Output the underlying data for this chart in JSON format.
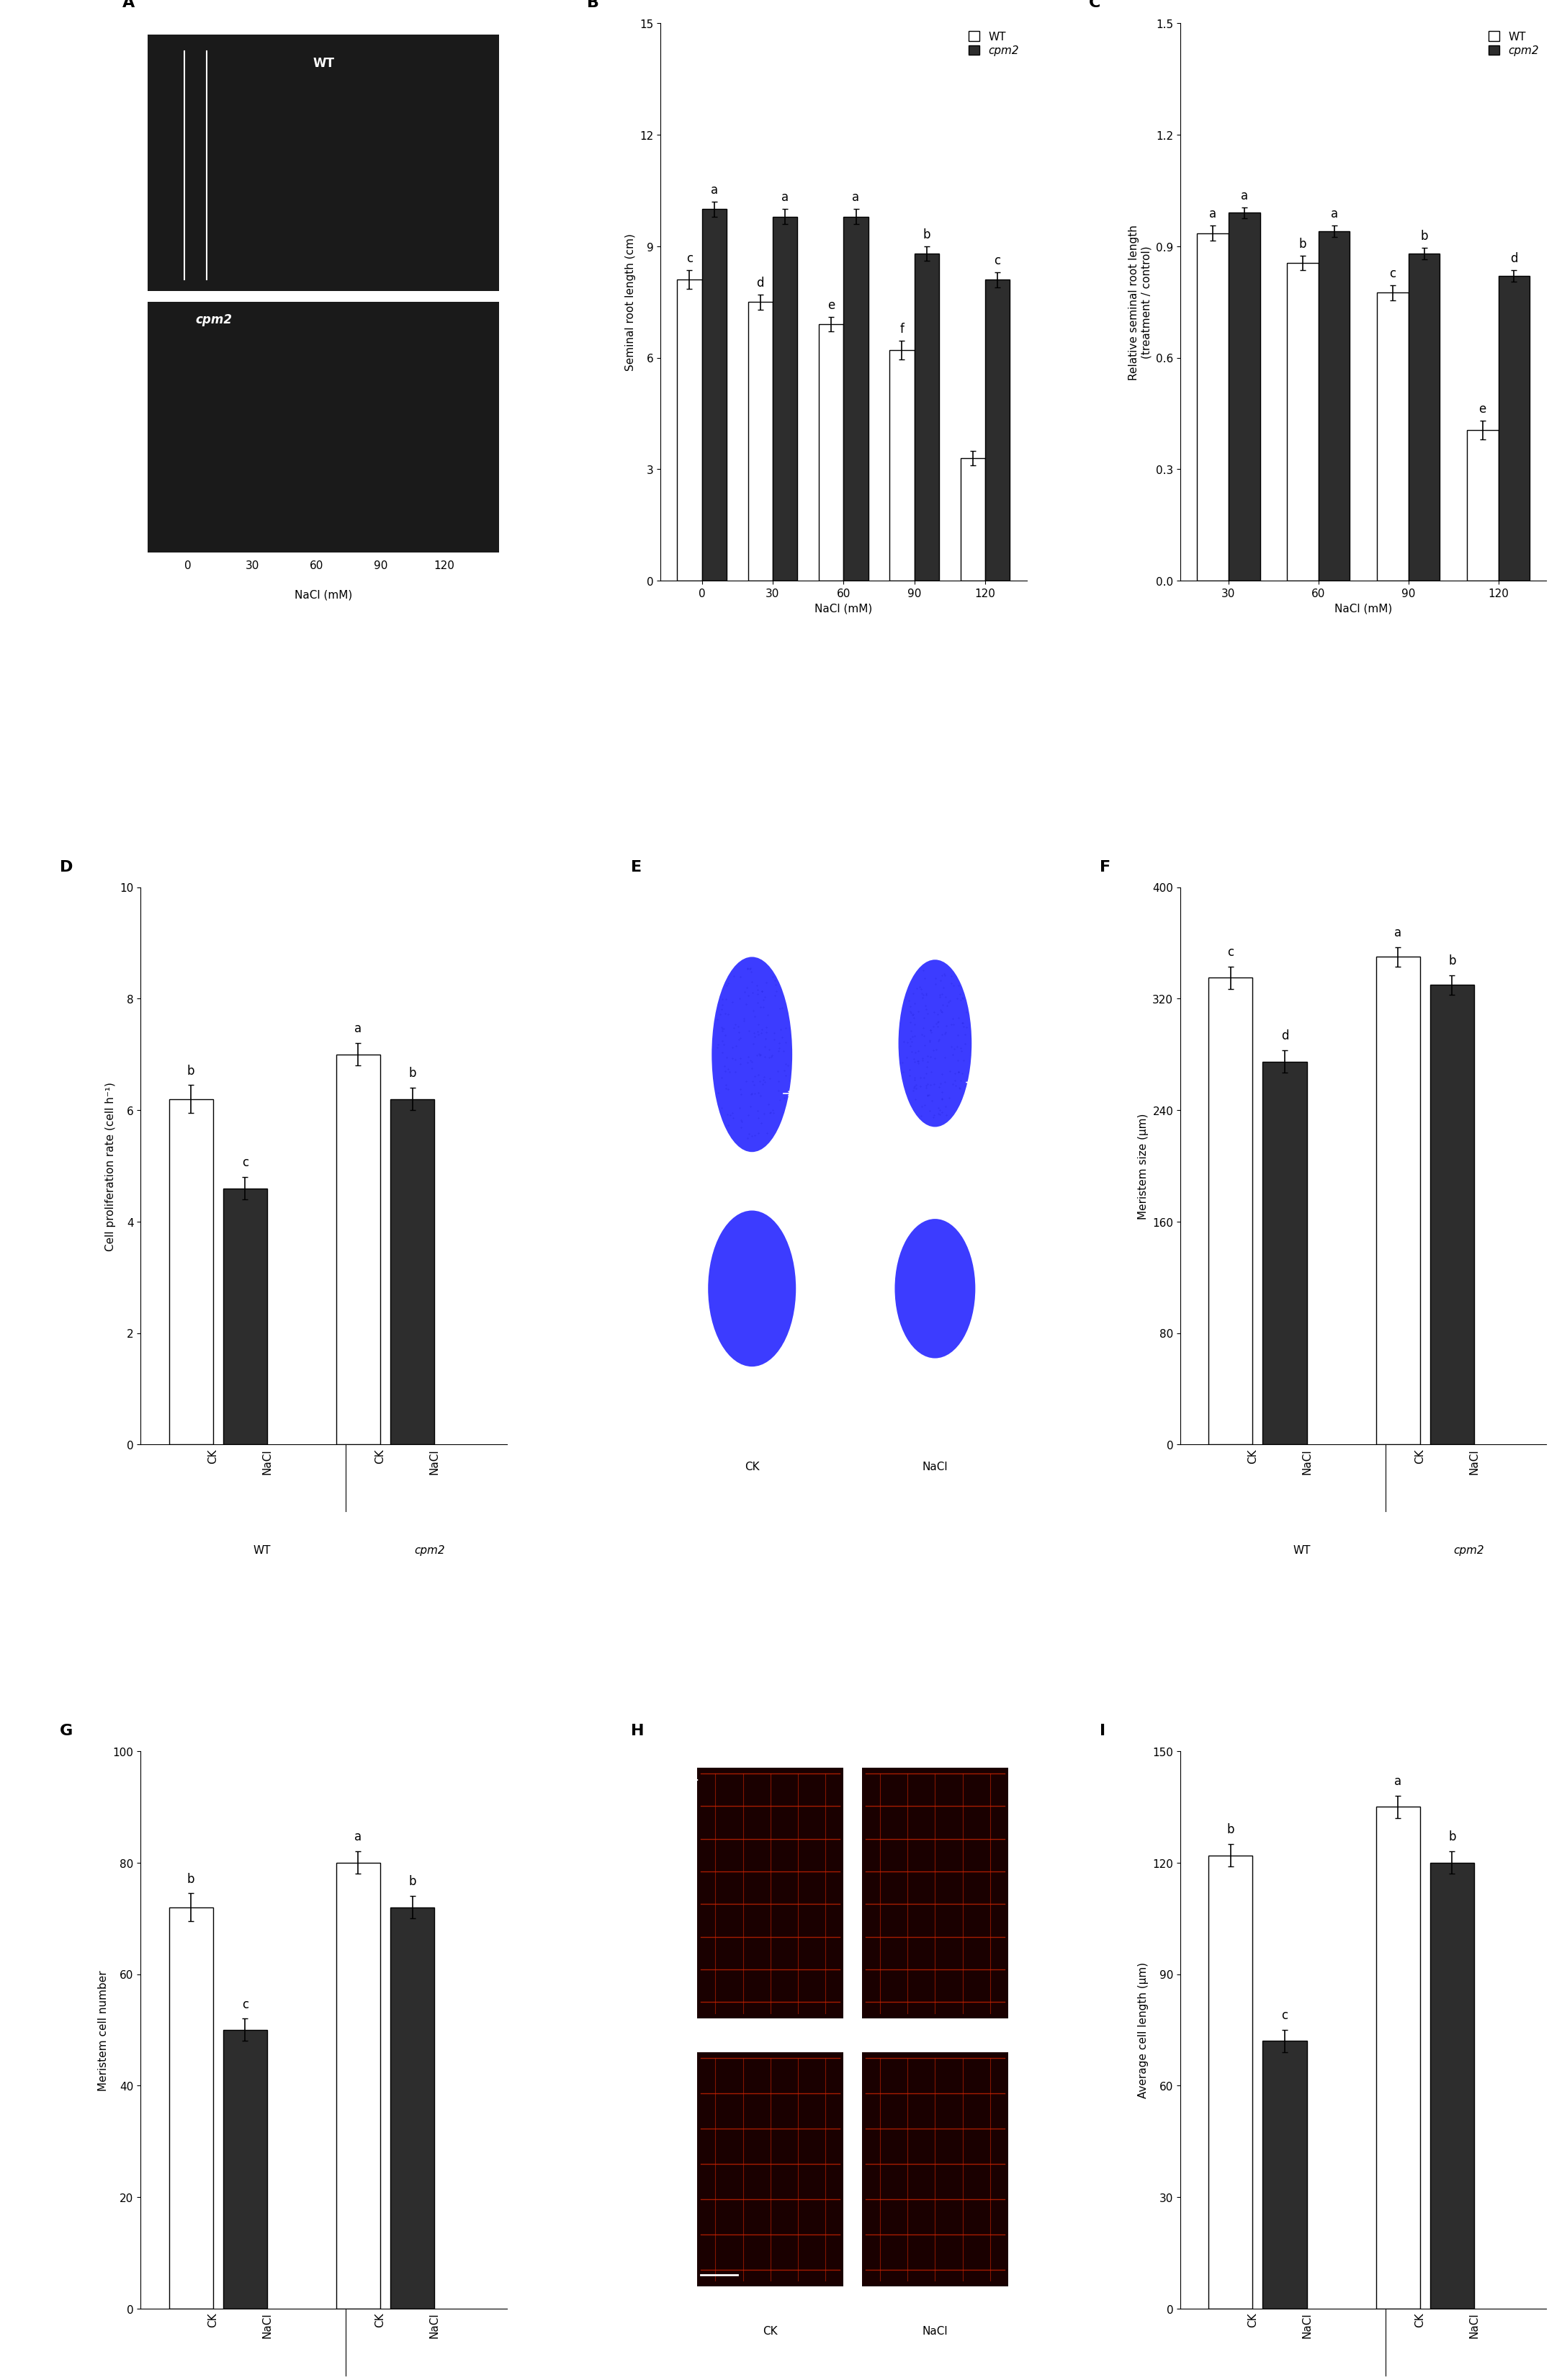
{
  "panel_labels": [
    "A",
    "B",
    "C",
    "D",
    "E",
    "F",
    "G",
    "H",
    "I"
  ],
  "B": {
    "ylabel": "Seminal root length (cm)",
    "xlabel": "NaCl (mM)",
    "xticks": [
      0,
      30,
      60,
      90,
      120
    ],
    "ylim": [
      0,
      15
    ],
    "yticks": [
      0,
      3,
      6,
      9,
      12,
      15
    ],
    "wt_values": [
      8.1,
      7.5,
      6.9,
      6.2,
      3.3
    ],
    "cpm2_values": [
      10.0,
      9.8,
      9.8,
      8.8,
      8.1
    ],
    "wt_err": [
      0.25,
      0.2,
      0.2,
      0.25,
      0.2
    ],
    "cpm2_err": [
      0.2,
      0.2,
      0.2,
      0.2,
      0.2
    ],
    "wt_letters": [
      "c",
      "d",
      "e",
      "f",
      ""
    ],
    "cpm2_letters": [
      "a",
      "a",
      "a",
      "b",
      "c"
    ]
  },
  "C": {
    "ylabel": "Relative seminal root length\n(treatment / control)",
    "xlabel": "NaCl (mM)",
    "xticks": [
      30,
      60,
      90,
      120
    ],
    "ylim": [
      0.0,
      1.5
    ],
    "yticks": [
      0.0,
      0.3,
      0.6,
      0.9,
      1.2,
      1.5
    ],
    "wt_values": [
      0.935,
      0.855,
      0.775,
      0.405
    ],
    "cpm2_values": [
      0.99,
      0.94,
      0.88,
      0.82
    ],
    "wt_err": [
      0.02,
      0.02,
      0.02,
      0.025
    ],
    "cpm2_err": [
      0.015,
      0.015,
      0.015,
      0.015
    ],
    "wt_letters": [
      "a",
      "b",
      "c",
      "e"
    ],
    "cpm2_letters": [
      "a",
      "a",
      "b",
      "d"
    ]
  },
  "D": {
    "ylabel": "Cell proliferation rate (cell h⁻¹)",
    "groups": [
      "WT",
      "cpm2"
    ],
    "conditions": [
      "CK",
      "NaCl"
    ],
    "values": [
      [
        6.2,
        4.6
      ],
      [
        7.0,
        6.2
      ]
    ],
    "errors": [
      [
        0.25,
        0.2
      ],
      [
        0.2,
        0.2
      ]
    ],
    "letters": [
      [
        "b",
        "c"
      ],
      [
        "a",
        "b"
      ]
    ],
    "ylim": [
      0,
      10
    ],
    "yticks": [
      0,
      2,
      4,
      6,
      8,
      10
    ]
  },
  "F": {
    "ylabel": "Meristem size (μm)",
    "groups": [
      "WT",
      "cpm2"
    ],
    "conditions": [
      "CK",
      "NaCl"
    ],
    "values": [
      [
        335,
        275
      ],
      [
        350,
        330
      ]
    ],
    "errors": [
      [
        8,
        8
      ],
      [
        7,
        7
      ]
    ],
    "letters": [
      [
        "c",
        "d"
      ],
      [
        "a",
        "b"
      ]
    ],
    "ylim": [
      0,
      400
    ],
    "yticks": [
      0,
      80,
      160,
      240,
      320,
      400
    ]
  },
  "G": {
    "ylabel": "Meristem cell number",
    "groups": [
      "WT",
      "cpm2"
    ],
    "conditions": [
      "CK",
      "NaCl"
    ],
    "values": [
      [
        72,
        50
      ],
      [
        80,
        72
      ]
    ],
    "errors": [
      [
        2.5,
        2.0
      ],
      [
        2.0,
        2.0
      ]
    ],
    "letters": [
      [
        "b",
        "c"
      ],
      [
        "a",
        "b"
      ]
    ],
    "ylim": [
      0,
      100
    ],
    "yticks": [
      0,
      20,
      40,
      60,
      80,
      100
    ]
  },
  "I": {
    "ylabel": "Average cell length (μm)",
    "groups": [
      "WT",
      "cpm2"
    ],
    "conditions": [
      "CK",
      "NaCl"
    ],
    "values": [
      [
        122,
        72
      ],
      [
        135,
        120
      ]
    ],
    "errors": [
      [
        3,
        3
      ],
      [
        3,
        3
      ]
    ],
    "letters": [
      [
        "b",
        "c"
      ],
      [
        "a",
        "b"
      ]
    ],
    "ylim": [
      0,
      150
    ],
    "yticks": [
      0,
      30,
      60,
      90,
      120,
      150
    ]
  },
  "wt_color": "white",
  "cpm2_color": "#2d2d2d",
  "bar_edge_color": "black",
  "font_size": 11,
  "label_font_size": 16,
  "tick_font_size": 11,
  "letter_font_size": 12,
  "bar_width": 0.35
}
